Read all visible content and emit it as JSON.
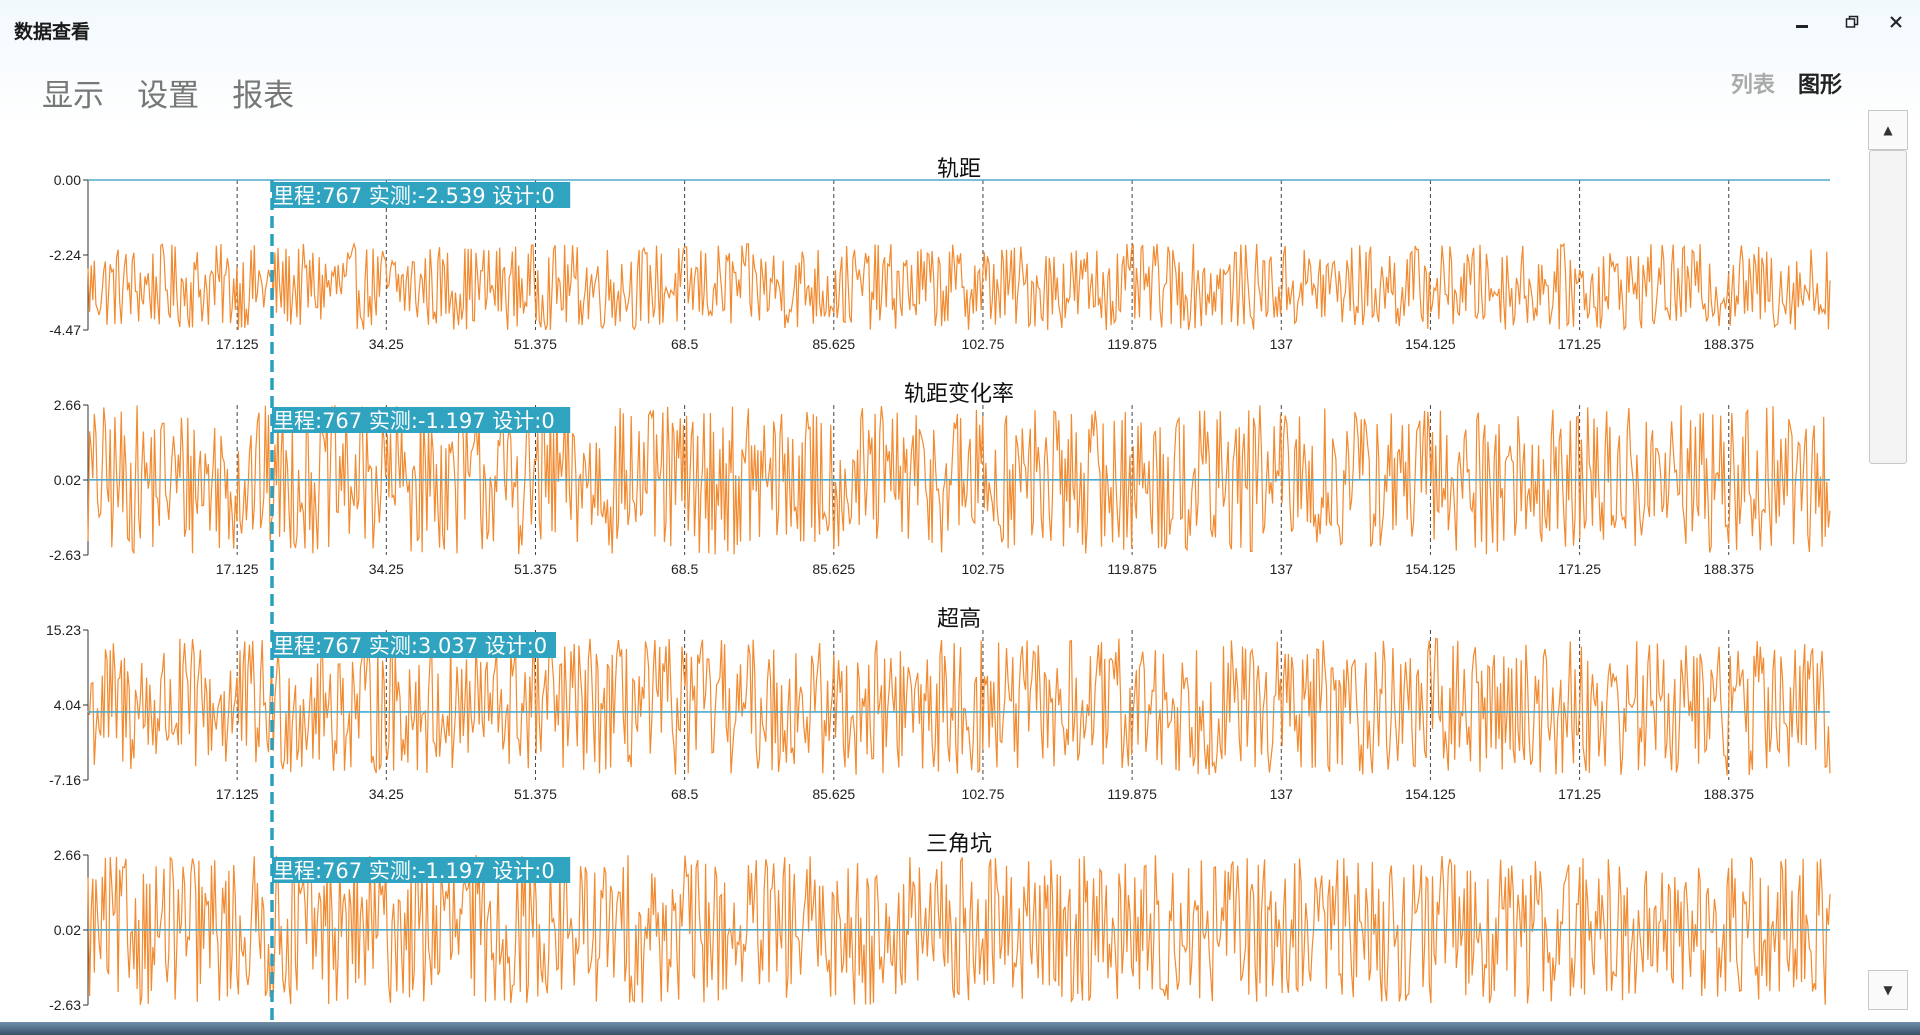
{
  "window": {
    "title": "数据查看",
    "controls": [
      "minimize-icon",
      "restore-icon",
      "close-icon"
    ]
  },
  "menu": {
    "items": [
      "显示",
      "设置",
      "报表"
    ]
  },
  "view_toggle": {
    "items": [
      "列表",
      "图形"
    ],
    "active": "图形"
  },
  "colors": {
    "series": "#f28a30",
    "baseline": "#4ea9cc",
    "cursor": "#2aa0bf",
    "tooltip_bg": "#2fa3bf"
  },
  "cursor": {
    "mileage": 767
  },
  "chart_data": [
    {
      "type": "line",
      "title": "轨距",
      "y_ticks": [
        "0.00",
        "-2.24",
        "-4.47"
      ],
      "ylim": [
        -4.47,
        0.0
      ],
      "baseline": 0.0,
      "x_ticks": [
        "17.125",
        "34.25",
        "51.375",
        "68.5",
        "85.625",
        "102.75",
        "119.875",
        "137",
        "154.125",
        "171.25",
        "188.375"
      ],
      "xlim": [
        0,
        200
      ],
      "tooltip": "里程:767 实测:-2.539 设计:0",
      "series": [
        {
          "band": [
            -4.47,
            -1.9
          ]
        }
      ]
    },
    {
      "type": "line",
      "title": "轨距变化率",
      "y_ticks": [
        "2.66",
        "0.02",
        "-2.63"
      ],
      "ylim": [
        -2.63,
        2.66
      ],
      "baseline": 0.02,
      "x_ticks": [
        "17.125",
        "34.25",
        "51.375",
        "68.5",
        "85.625",
        "102.75",
        "119.875",
        "137",
        "154.125",
        "171.25",
        "188.375"
      ],
      "xlim": [
        0,
        200
      ],
      "tooltip": "里程:767 实测:-1.197 设计:0",
      "series": [
        {
          "band": [
            -2.63,
            2.66
          ]
        }
      ]
    },
    {
      "type": "line",
      "title": "超高",
      "y_ticks": [
        "15.23",
        "4.04",
        "-7.16"
      ],
      "ylim": [
        -7.16,
        15.23
      ],
      "baseline": 3.0,
      "x_ticks": [
        "17.125",
        "34.25",
        "51.375",
        "68.5",
        "85.625",
        "102.75",
        "119.875",
        "137",
        "154.125",
        "171.25",
        "188.375"
      ],
      "xlim": [
        0,
        200
      ],
      "tooltip": "里程:767 实测:3.037 设计:0",
      "series": [
        {
          "band": [
            -6.5,
            14.0
          ]
        }
      ]
    },
    {
      "type": "line",
      "title": "三角坑",
      "y_ticks": [
        "2.66",
        "0.02",
        "-2.63"
      ],
      "ylim": [
        -2.63,
        2.66
      ],
      "baseline": 0.02,
      "x_ticks": [],
      "xlim": [
        0,
        200
      ],
      "tooltip": "里程:767 实测:-1.197 设计:0",
      "series": [
        {
          "band": [
            -2.63,
            2.66
          ]
        }
      ]
    }
  ]
}
